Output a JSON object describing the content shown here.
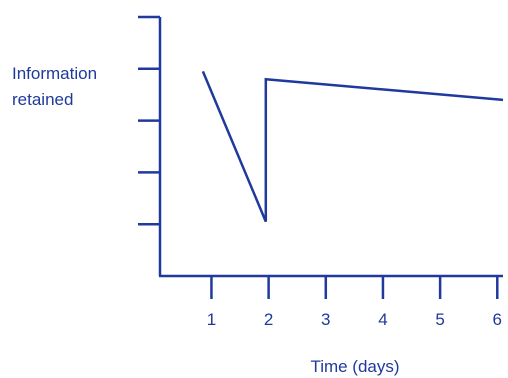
{
  "chart_data": {
    "type": "line",
    "title": "",
    "ylabel_lines": [
      "Information",
      "retained"
    ],
    "xlabel": "Time (days)",
    "x_ticks": [
      "1",
      "2",
      "3",
      "4",
      "5",
      "6"
    ],
    "xlim": [
      0.1,
      6.1
    ],
    "ylim": [
      0,
      5
    ],
    "y_tick_count": 5,
    "grid": false,
    "series": [
      {
        "x": [
          0.85,
          1.95,
          1.95,
          6.1
        ],
        "y": [
          3.95,
          1.05,
          3.8,
          3.4
        ]
      }
    ],
    "colors": {
      "axis": "#1f3a9c",
      "line": "#1f3a9c",
      "text": "#1f3a9c"
    }
  }
}
